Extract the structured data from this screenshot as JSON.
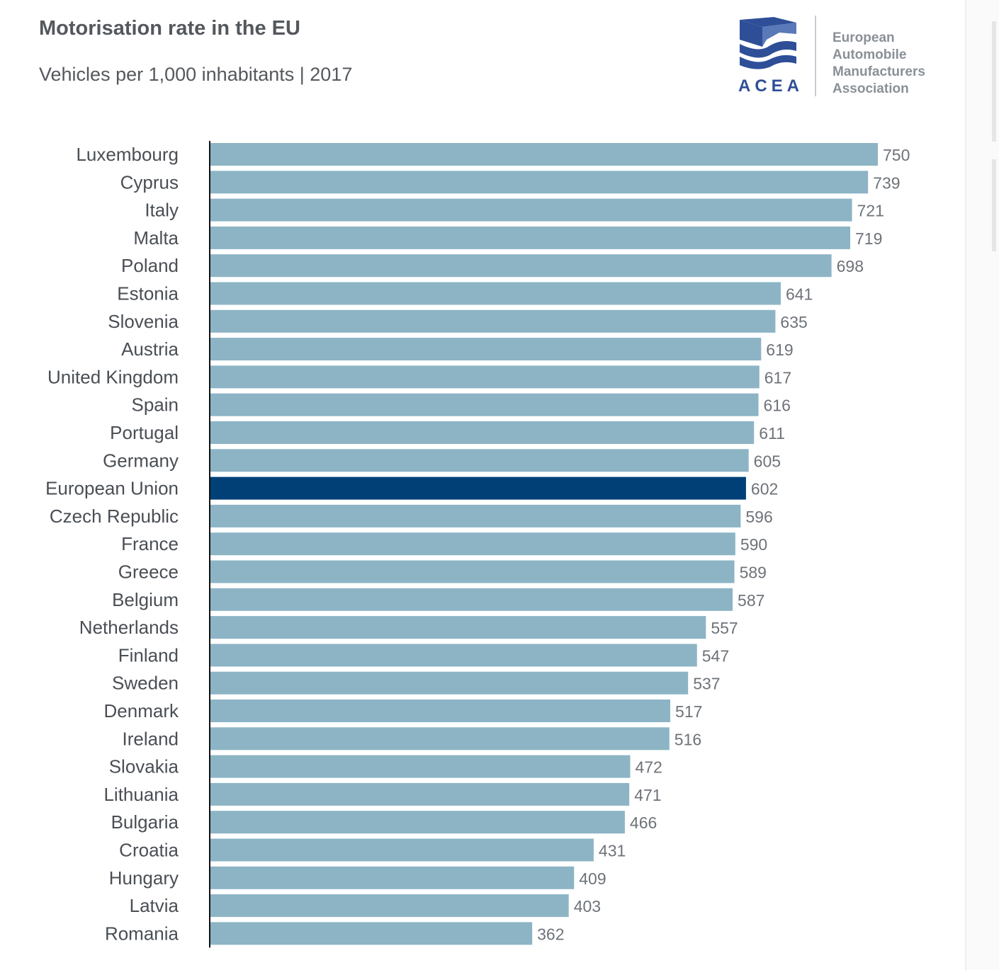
{
  "header": {
    "title": "Motorisation rate in the EU",
    "subtitle": "Vehicles per 1,000 inhabitants | 2017"
  },
  "logo": {
    "acronym": "ACEA",
    "org_name_lines": [
      "European",
      "Automobile",
      "Manufacturers",
      "Association"
    ],
    "brand_color": "#2e4f98"
  },
  "colors": {
    "bar": "#8cb4c5",
    "highlight_bar": "#004077",
    "axis": "#111111"
  },
  "chart_data": {
    "type": "bar",
    "orientation": "horizontal",
    "title": "Motorisation rate in the EU",
    "subtitle": "Vehicles per 1,000 inhabitants | 2017",
    "xlim": [
      0,
      750
    ],
    "grid": false,
    "highlight": "European Union",
    "categories": [
      "Luxembourg",
      "Cyprus",
      "Italy",
      "Malta",
      "Poland",
      "Estonia",
      "Slovenia",
      "Austria",
      "United Kingdom",
      "Spain",
      "Portugal",
      "Germany",
      "European Union",
      "Czech Republic",
      "France",
      "Greece",
      "Belgium",
      "Netherlands",
      "Finland",
      "Sweden",
      "Denmark",
      "Ireland",
      "Slovakia",
      "Lithuania",
      "Bulgaria",
      "Croatia",
      "Hungary",
      "Latvia",
      "Romania"
    ],
    "values": [
      750,
      739,
      721,
      719,
      698,
      641,
      635,
      619,
      617,
      616,
      611,
      605,
      602,
      596,
      590,
      589,
      587,
      557,
      547,
      537,
      517,
      516,
      472,
      471,
      466,
      431,
      409,
      403,
      362
    ]
  }
}
